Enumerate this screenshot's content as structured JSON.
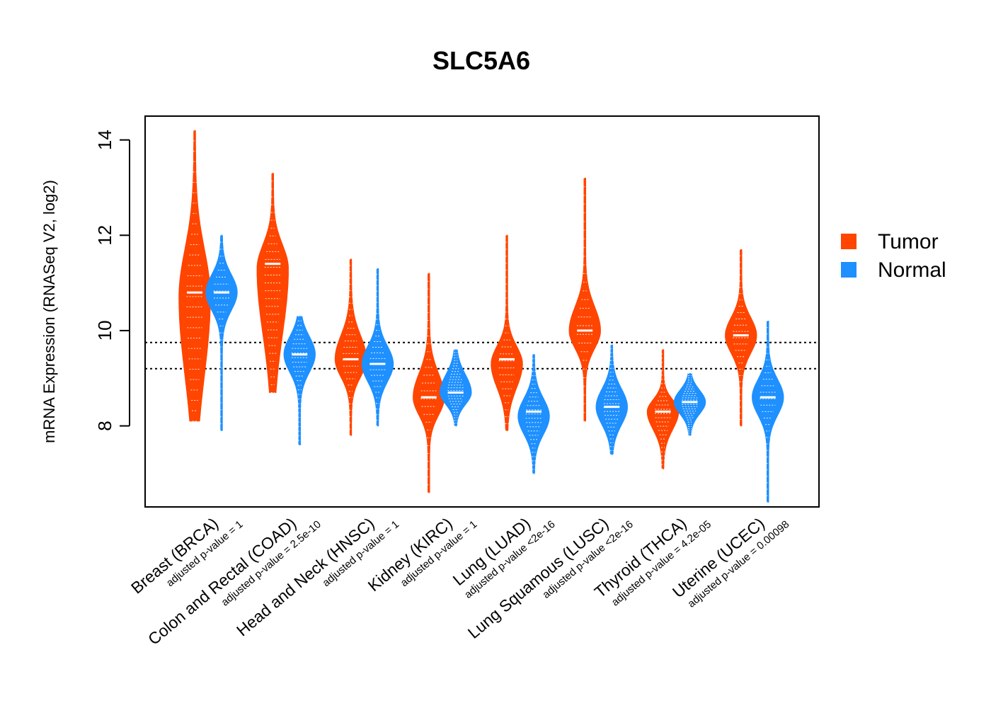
{
  "chart_data": {
    "type": "violin",
    "title": "SLC5A6",
    "ylabel": "mRNA Expression (RNASeq V2, log2)",
    "xlabel": "",
    "ylim": [
      6.3,
      14.5
    ],
    "yticks": [
      8,
      10,
      12,
      14
    ],
    "grid": false,
    "legend_position": "right",
    "reference_lines": [
      9.75,
      9.2
    ],
    "series": [
      {
        "name": "Tumor",
        "color": "#FF4500"
      },
      {
        "name": "Normal",
        "color": "#1E90FF"
      }
    ],
    "categories": [
      {
        "label": "Breast (BRCA)",
        "pvalue": "adjusted p-value = 1",
        "tumor": {
          "median": 10.8,
          "q1": 9.5,
          "q3": 11.6,
          "min": 8.1,
          "max": 14.2,
          "peak": 10.7
        },
        "normal": {
          "median": 10.8,
          "q1": 10.5,
          "q3": 11.1,
          "min": 7.9,
          "max": 12.0,
          "peak": 10.8
        }
      },
      {
        "label": "Colon and Rectal (COAD)",
        "pvalue": "adjusted p-value = 2.5e-10",
        "tumor": {
          "median": 11.4,
          "q1": 10.3,
          "q3": 11.8,
          "min": 8.7,
          "max": 13.3,
          "peak": 11.3
        },
        "normal": {
          "median": 9.5,
          "q1": 9.2,
          "q3": 9.8,
          "min": 7.6,
          "max": 10.3,
          "peak": 9.5
        }
      },
      {
        "label": "Head and Neck (HNSC)",
        "pvalue": "adjusted p-value = 1",
        "tumor": {
          "median": 9.4,
          "q1": 9.1,
          "q3": 9.8,
          "min": 7.8,
          "max": 11.5,
          "peak": 9.4
        },
        "normal": {
          "median": 9.3,
          "q1": 9.0,
          "q3": 9.6,
          "min": 8.0,
          "max": 11.3,
          "peak": 9.3
        }
      },
      {
        "label": "Kidney (KIRC)",
        "pvalue": "adjusted p-value = 1",
        "tumor": {
          "median": 8.6,
          "q1": 8.3,
          "q3": 9.0,
          "min": 6.6,
          "max": 11.2,
          "peak": 8.6
        },
        "normal": {
          "median": 8.7,
          "q1": 8.5,
          "q3": 9.0,
          "min": 8.0,
          "max": 9.6,
          "peak": 8.7
        }
      },
      {
        "label": "Lung (LUAD)",
        "pvalue": "adjusted p-value <2e-16",
        "tumor": {
          "median": 9.4,
          "q1": 9.0,
          "q3": 9.7,
          "min": 7.9,
          "max": 12.0,
          "peak": 9.3
        },
        "normal": {
          "median": 8.3,
          "q1": 8.0,
          "q3": 8.6,
          "min": 7.0,
          "max": 9.5,
          "peak": 8.2
        }
      },
      {
        "label": "Lung Squamous (LUSC)",
        "pvalue": "adjusted p-value <2e-16",
        "tumor": {
          "median": 10.0,
          "q1": 9.7,
          "q3": 10.4,
          "min": 8.1,
          "max": 13.2,
          "peak": 10.0
        },
        "normal": {
          "median": 8.4,
          "q1": 8.1,
          "q3": 8.7,
          "min": 7.4,
          "max": 9.7,
          "peak": 8.4
        }
      },
      {
        "label": "Thyroid (THCA)",
        "pvalue": "adjusted p-value = 4.2e-05",
        "tumor": {
          "median": 8.3,
          "q1": 8.0,
          "q3": 8.5,
          "min": 7.1,
          "max": 9.6,
          "peak": 8.3
        },
        "normal": {
          "median": 8.5,
          "q1": 8.3,
          "q3": 8.7,
          "min": 7.8,
          "max": 9.1,
          "peak": 8.5
        }
      },
      {
        "label": "Uterine (UCEC)",
        "pvalue": "adjusted p-value = 0.00098",
        "tumor": {
          "median": 9.9,
          "q1": 9.6,
          "q3": 10.2,
          "min": 8.0,
          "max": 11.7,
          "peak": 9.9
        },
        "normal": {
          "median": 8.6,
          "q1": 8.3,
          "q3": 8.9,
          "min": 6.4,
          "max": 10.2,
          "peak": 8.6
        }
      }
    ]
  }
}
